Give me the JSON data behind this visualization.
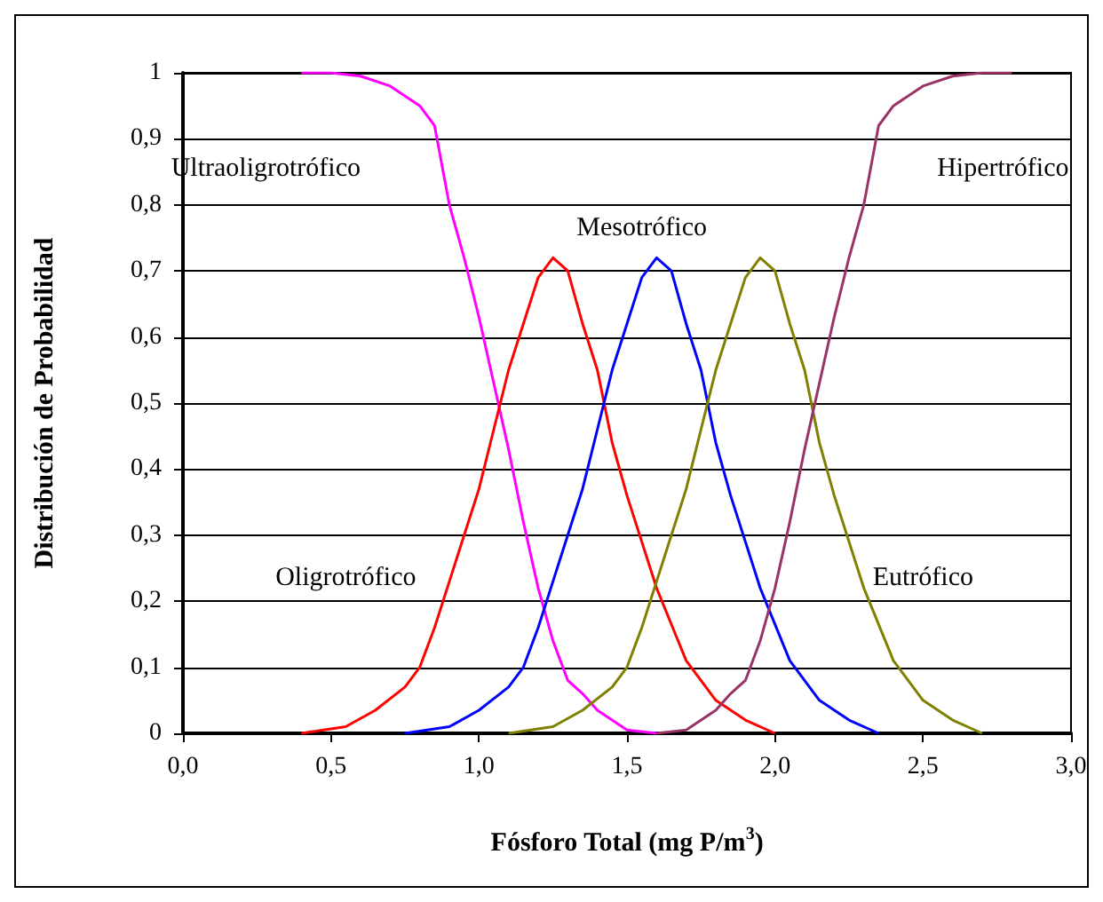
{
  "chart_data": {
    "type": "line",
    "xlabel": "Fósforo Total (mg P/m$^{3}$)",
    "ylabel": "Distribución de Probabilidad",
    "xlim": [
      0,
      3
    ],
    "xticks": [
      {
        "value": 0,
        "label": "0,0"
      },
      {
        "value": 0.5,
        "label": "0,5"
      },
      {
        "value": 1,
        "label": "1,0"
      },
      {
        "value": 1.5,
        "label": "1,5"
      },
      {
        "value": 2,
        "label": "2,0"
      },
      {
        "value": 2.5,
        "label": "2,5"
      },
      {
        "value": 3,
        "label": "3,0"
      }
    ],
    "ylim": [
      0,
      1
    ],
    "yticks": [
      0,
      {
        "value": 0.1,
        "label": "0,1"
      },
      {
        "value": 0.2,
        "label": "0,2"
      },
      {
        "value": 0.3,
        "label": "0,3"
      },
      {
        "value": 0.4,
        "label": "0,4"
      },
      {
        "value": 0.5,
        "label": "0,5"
      },
      {
        "value": 0.6,
        "label": "0,6"
      },
      {
        "value": 0.7,
        "label": "0,7"
      },
      {
        "value": 0.8,
        "label": "0,8"
      },
      {
        "value": 0.9,
        "label": "0,9"
      },
      1
    ],
    "grid": "y",
    "legend": false,
    "marker": "none",
    "line_style": "solid",
    "series": [
      {
        "name": "Ultraoligrotrófico",
        "color": "#ff00ff",
        "x": [
          0.4,
          0.5,
          0.6,
          0.7,
          0.8,
          0.85,
          0.9,
          0.95,
          1.0,
          1.05,
          1.1,
          1.15,
          1.2,
          1.25,
          1.3,
          1.35,
          1.4,
          1.5,
          1.6
        ],
        "values": [
          1,
          1,
          0.995,
          0.98,
          0.95,
          0.92,
          0.8,
          0.72,
          0.63,
          0.53,
          0.43,
          0.32,
          0.22,
          0.14,
          0.08,
          0.06,
          0.035,
          0.005,
          0
        ]
      },
      {
        "name": "Oligrotrófico",
        "color": "#ff0000",
        "x": [
          0.4,
          0.55,
          0.65,
          0.75,
          0.8,
          0.85,
          0.9,
          0.95,
          1.0,
          1.05,
          1.1,
          1.15,
          1.2,
          1.25,
          1.3,
          1.35,
          1.4,
          1.45,
          1.5,
          1.6,
          1.7,
          1.8,
          1.9,
          2.0
        ],
        "values": [
          0,
          0.01,
          0.035,
          0.07,
          0.1,
          0.16,
          0.23,
          0.3,
          0.37,
          0.46,
          0.55,
          0.62,
          0.69,
          0.72,
          0.7,
          0.62,
          0.55,
          0.44,
          0.36,
          0.22,
          0.11,
          0.05,
          0.02,
          0
        ]
      },
      {
        "name": "Mesotrófico",
        "color": "#0000ff",
        "x": [
          0.75,
          0.9,
          1.0,
          1.1,
          1.15,
          1.2,
          1.25,
          1.3,
          1.35,
          1.4,
          1.45,
          1.5,
          1.55,
          1.6,
          1.65,
          1.7,
          1.75,
          1.8,
          1.85,
          1.95,
          2.05,
          2.15,
          2.25,
          2.35
        ],
        "values": [
          0,
          0.01,
          0.035,
          0.07,
          0.1,
          0.16,
          0.23,
          0.3,
          0.37,
          0.46,
          0.55,
          0.62,
          0.69,
          0.72,
          0.7,
          0.62,
          0.55,
          0.44,
          0.36,
          0.22,
          0.11,
          0.05,
          0.02,
          0
        ]
      },
      {
        "name": "Eutrófico",
        "color": "#808000",
        "x": [
          1.1,
          1.25,
          1.35,
          1.45,
          1.5,
          1.55,
          1.6,
          1.65,
          1.7,
          1.75,
          1.8,
          1.85,
          1.9,
          1.95,
          2.0,
          2.05,
          2.1,
          2.15,
          2.2,
          2.3,
          2.4,
          2.5,
          2.6,
          2.7
        ],
        "values": [
          0,
          0.01,
          0.035,
          0.07,
          0.1,
          0.16,
          0.23,
          0.3,
          0.37,
          0.46,
          0.55,
          0.62,
          0.69,
          0.72,
          0.7,
          0.62,
          0.55,
          0.44,
          0.36,
          0.22,
          0.11,
          0.05,
          0.02,
          0
        ]
      },
      {
        "name": "Hipertrófico",
        "color": "#993366",
        "x": [
          1.6,
          1.7,
          1.8,
          1.85,
          1.9,
          1.95,
          2.0,
          2.05,
          2.1,
          2.15,
          2.2,
          2.25,
          2.3,
          2.35,
          2.4,
          2.5,
          2.6,
          2.7,
          2.8
        ],
        "values": [
          0,
          0.005,
          0.035,
          0.06,
          0.08,
          0.14,
          0.22,
          0.32,
          0.43,
          0.53,
          0.63,
          0.72,
          0.8,
          0.92,
          0.95,
          0.98,
          0.995,
          1,
          1
        ]
      }
    ]
  }
}
